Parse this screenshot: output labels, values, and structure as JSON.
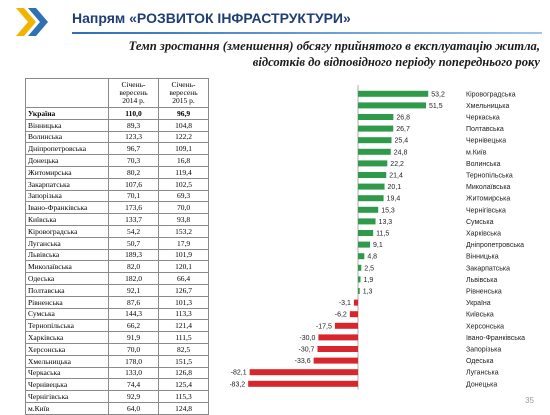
{
  "header": {
    "title": "Напрям «РОЗВИТОК ІНФРАСТРУКТУРИ»",
    "subtitle_line1": "Темп зростання (зменшення) обсягу прийнятого в експлуатацію житла,",
    "subtitle_line2": "відсотків до відповідного періоду попереднього року"
  },
  "table": {
    "col1_header": [
      "Січень-",
      "вересень",
      "2014 р."
    ],
    "col2_header": [
      "Січень-",
      "вересень",
      "2015 р."
    ],
    "rows": [
      {
        "region": "Україна",
        "v2014": "110,0",
        "v2015": "96,9",
        "bold": true
      },
      {
        "region": "Вінницька",
        "v2014": "89,3",
        "v2015": "104,8"
      },
      {
        "region": "Волинська",
        "v2014": "123,3",
        "v2015": "122,2"
      },
      {
        "region": "Дніпропетровська",
        "v2014": "96,7",
        "v2015": "109,1"
      },
      {
        "region": "Донецька",
        "v2014": "70,3",
        "v2015": "16,8"
      },
      {
        "region": "Житомирська",
        "v2014": "80,2",
        "v2015": "119,4"
      },
      {
        "region": "Закарпатська",
        "v2014": "107,6",
        "v2015": "102,5"
      },
      {
        "region": "Запорізька",
        "v2014": "70,1",
        "v2015": "69,3"
      },
      {
        "region": "Івано-Франківська",
        "v2014": "173,6",
        "v2015": "70,0"
      },
      {
        "region": "Київська",
        "v2014": "133,7",
        "v2015": "93,8"
      },
      {
        "region": "Кіровоградська",
        "v2014": "54,2",
        "v2015": "153,2"
      },
      {
        "region": "Луганська",
        "v2014": "50,7",
        "v2015": "17,9"
      },
      {
        "region": "Львівська",
        "v2014": "189,3",
        "v2015": "101,9"
      },
      {
        "region": "Миколаївська",
        "v2014": "82,0",
        "v2015": "120,1"
      },
      {
        "region": "Одеська",
        "v2014": "182,0",
        "v2015": "66,4"
      },
      {
        "region": "Полтавська",
        "v2014": "92,1",
        "v2015": "126,7"
      },
      {
        "region": "Рівненська",
        "v2014": "87,6",
        "v2015": "101,3"
      },
      {
        "region": "Сумська",
        "v2014": "144,3",
        "v2015": "113,3"
      },
      {
        "region": "Тернопільська",
        "v2014": "66,2",
        "v2015": "121,4"
      },
      {
        "region": "Харківська",
        "v2014": "91,9",
        "v2015": "111,5"
      },
      {
        "region": "Херсонська",
        "v2014": "70,0",
        "v2015": "82,5"
      },
      {
        "region": "Хмельницька",
        "v2014": "178,0",
        "v2015": "151,5"
      },
      {
        "region": "Черкаська",
        "v2014": "133,0",
        "v2015": "126,8"
      },
      {
        "region": "Чернівецька",
        "v2014": "74,4",
        "v2015": "125,4"
      },
      {
        "region": "Чернігівська",
        "v2014": "92,9",
        "v2015": "115,3"
      },
      {
        "region": "м.Київ",
        "v2014": "64,0",
        "v2015": "124,8"
      }
    ]
  },
  "chart_data": {
    "type": "bar",
    "orientation": "horizontal",
    "categories": [
      "Кіровоградська",
      "Хмельницька",
      "Черкаська",
      "Полтавська",
      "Чернівецька",
      "м.Київ",
      "Волинська",
      "Тернопільська",
      "Миколаївська",
      "Житомирська",
      "Чернігівська",
      "Сумська",
      "Харківська",
      "Дніпропетровська",
      "Вінницька",
      "Закарпатська",
      "Львівська",
      "Рівненська",
      "Україна",
      "Київська",
      "Херсонська",
      "Івано-Франківська",
      "Запорізька",
      "Одеська",
      "Луганська",
      "Донецька"
    ],
    "values": [
      53.2,
      51.5,
      26.8,
      26.7,
      25.4,
      24.8,
      22.2,
      21.4,
      20.1,
      19.4,
      15.3,
      13.3,
      11.5,
      9.1,
      4.8,
      2.5,
      1.9,
      1.3,
      -3.1,
      -6.2,
      -17.5,
      -30.0,
      -30.7,
      -33.6,
      -82.1,
      -83.2
    ],
    "labels": [
      "53,2",
      "51,5",
      "26,8",
      "26,7",
      "25,4",
      "24,8",
      "22,2",
      "21,4",
      "20,1",
      "19,4",
      "15,3",
      "13,3",
      "11,5",
      "9,1",
      "4,8",
      "2,5",
      "1,9",
      "1,3",
      "-3,1",
      "-6,2",
      "-17,5",
      "-30,0",
      "-30,7",
      "-33,6",
      "-82,1",
      "-83,2"
    ],
    "positive_color": "#2e9a4a",
    "negative_color": "#d9262c",
    "xlim": [
      -90,
      60
    ],
    "legend": "none",
    "grid": false
  },
  "slide_number": "35",
  "colors": {
    "title": "#1f3f73",
    "accent": "#2e6fb5"
  }
}
